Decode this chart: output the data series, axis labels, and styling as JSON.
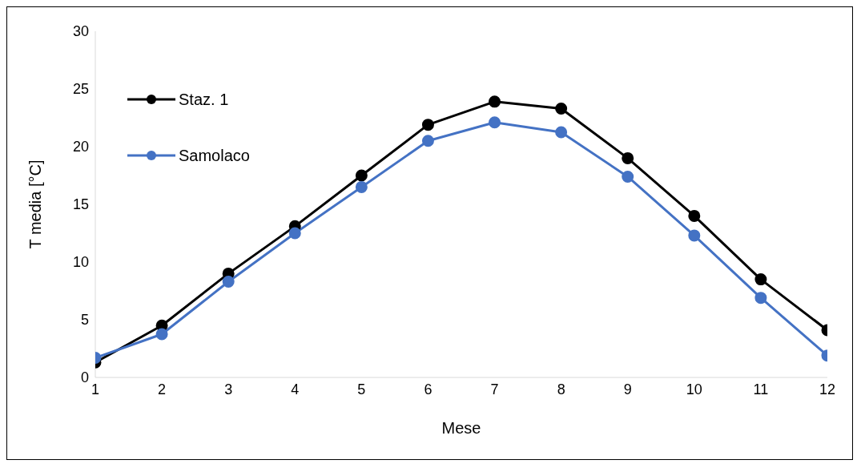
{
  "chart_data": {
    "type": "line",
    "xlabel": "Mese",
    "ylabel": "T media [°C]",
    "x": [
      1,
      2,
      3,
      4,
      5,
      6,
      7,
      8,
      9,
      10,
      11,
      12
    ],
    "series": [
      {
        "name": "Staz. 1",
        "color": "#000000",
        "values": [
          1.3,
          4.5,
          9.0,
          13.1,
          17.5,
          21.9,
          23.9,
          23.3,
          19.0,
          14.0,
          8.5,
          4.1
        ]
      },
      {
        "name": "Samolaco",
        "color": "#4472c4",
        "values": [
          1.7,
          3.75,
          8.3,
          12.5,
          16.5,
          20.5,
          22.1,
          21.25,
          17.4,
          12.3,
          6.9,
          1.9
        ]
      }
    ],
    "xlim": [
      1,
      12
    ],
    "xticks": [
      1,
      2,
      3,
      4,
      5,
      6,
      7,
      8,
      9,
      10,
      11,
      12
    ],
    "ylim": [
      0,
      30
    ],
    "yticks": [
      0,
      5,
      10,
      15,
      20,
      25,
      30
    ],
    "grid": false,
    "legend": "top left",
    "marker": "circle",
    "line_style": "solid"
  }
}
